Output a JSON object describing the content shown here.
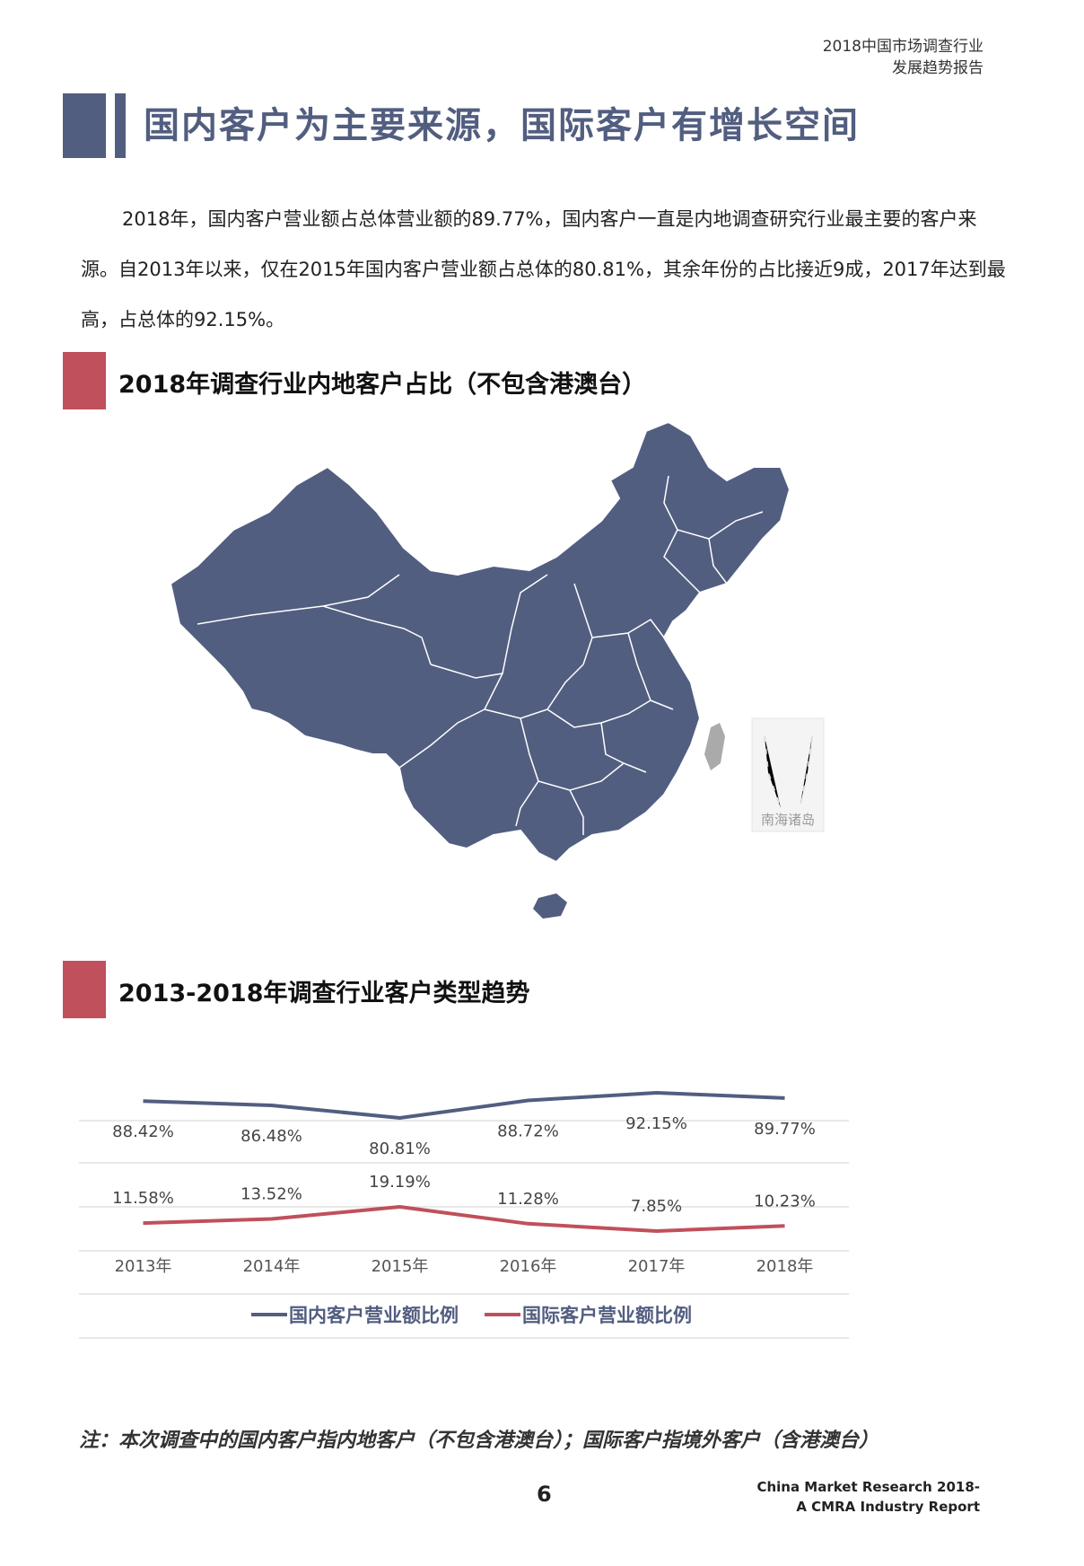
{
  "header": {
    "line1": "2018中国市场调查行业",
    "line2": "发展趋势报告"
  },
  "title": "国内客户为主要来源，国际客户有增长空间",
  "intro": "2018年，国内客户营业额占总体营业额的89.77%，国内客户一直是内地调查研究行业最主要的客户来源。自2013年以来，仅在2015年国内客户营业额占总体的80.81%，其余年份的占比接近9成，2017年达到最高，占总体的92.15%。",
  "section1": {
    "title": "2018年调查行业内地客户占比（不包含港澳台）",
    "map_inset_label": "南海诸岛",
    "map_color": "#525e80"
  },
  "section2": {
    "title": "2013-2018年调查行业客户类型趋势"
  },
  "chart_data": {
    "type": "line",
    "categories": [
      "2013年",
      "2014年",
      "2015年",
      "2016年",
      "2017年",
      "2018年"
    ],
    "series": [
      {
        "name": "国内客户营业额比例",
        "values": [
          88.42,
          86.48,
          80.81,
          88.72,
          92.15,
          89.77
        ],
        "labels": [
          "88.42%",
          "86.48%",
          "80.81%",
          "88.72%",
          "92.15%",
          "89.77%"
        ],
        "color": "#525e80"
      },
      {
        "name": "国际客户营业额比例",
        "values": [
          11.58,
          13.52,
          19.19,
          11.28,
          7.85,
          10.23
        ],
        "labels": [
          "11.58%",
          "13.52%",
          "19.19%",
          "11.28%",
          "7.85%",
          "10.23%"
        ],
        "color": "#c0505c"
      }
    ],
    "grid": true,
    "legend": "bottom"
  },
  "note": "注：本次调查中的国内客户指内地客户（不包含港澳台）；国际客户指境外客户（含港澳台）",
  "page_number": "6",
  "footer": {
    "line1": "China Market Research 2018-",
    "line2": "A CMRA Industry Report"
  }
}
